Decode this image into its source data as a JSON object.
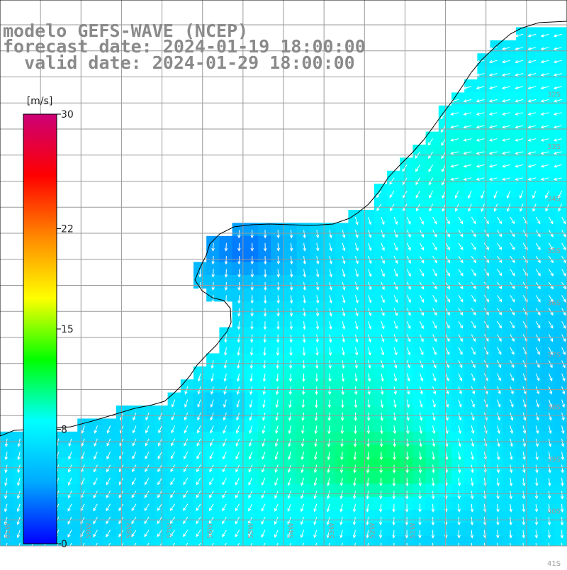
{
  "title": {
    "model": "modelo GEFS-WAVE (NCEP)",
    "forecast": "forecast date: 2024-01-19 18:00:00",
    "valid": "  valid date: 2024-01-29 18:00:00"
  },
  "colorbar": {
    "unit_label": "[m/s]",
    "ticks": [
      {
        "value": 30,
        "label": "30"
      },
      {
        "value": 22,
        "label": "22"
      },
      {
        "value": 15,
        "label": "15"
      },
      {
        "value": 8,
        "label": "8"
      },
      {
        "value": 0,
        "label": "0"
      }
    ],
    "range": [
      0,
      30
    ],
    "colors": [
      "#0000ff",
      "#00aaff",
      "#00ffff",
      "#00ff00",
      "#ffff00",
      "#ff8800",
      "#ff0000",
      "#cc0077"
    ]
  },
  "map": {
    "variable": "wind speed",
    "lon_range": [
      -61,
      -47
    ],
    "lat_range": [
      -41,
      -31
    ],
    "lat_labels": [
      "32S",
      "33S",
      "34S",
      "35S",
      "36S",
      "37S",
      "38S",
      "39S",
      "40S",
      "41S"
    ],
    "lon_labels": [
      "61W",
      "60W",
      "59W",
      "58W",
      "57W",
      "56W",
      "55W",
      "54W",
      "53W",
      "52W",
      "51W"
    ],
    "grid": true,
    "land_color": "#ffffff",
    "coast_color": "#000000",
    "grid_color": "#9a9a9a",
    "arrow_color": "#ffffff"
  }
}
